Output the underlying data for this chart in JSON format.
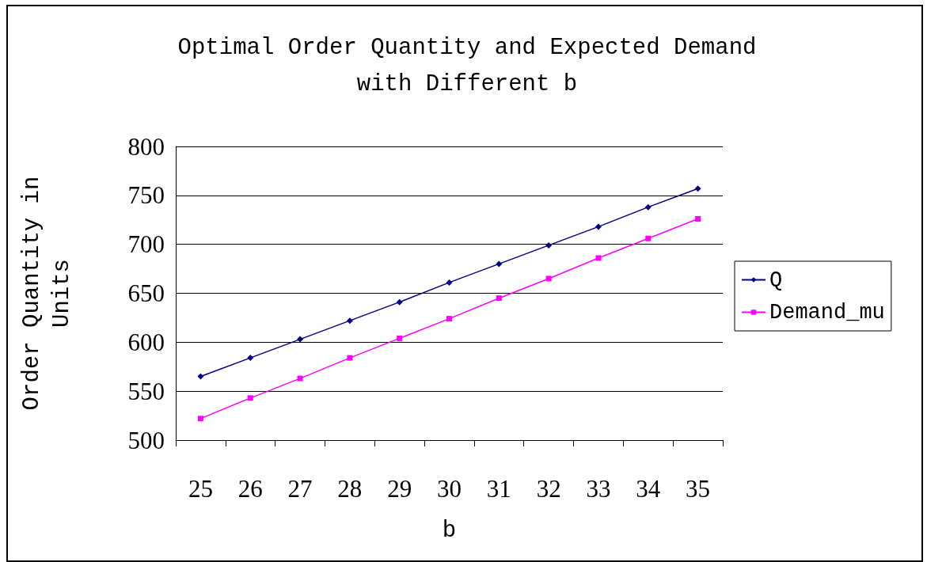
{
  "chart_data": {
    "type": "line",
    "title": "Optimal Order Quantity and Expected Demand\nwith Different b",
    "xlabel": "b",
    "ylabel": "Order Quantity in\nUnits",
    "categories": [
      "25",
      "26",
      "27",
      "28",
      "29",
      "30",
      "31",
      "32",
      "33",
      "34",
      "35"
    ],
    "series": [
      {
        "name": "Q",
        "color": "#000080",
        "marker": "diamond",
        "values": [
          565,
          584,
          603,
          622,
          641,
          661,
          680,
          699,
          718,
          738,
          757
        ]
      },
      {
        "name": "Demand_mu",
        "color": "#ff00ff",
        "marker": "square",
        "values": [
          522,
          543,
          563,
          584,
          604,
          624,
          645,
          665,
          686,
          706,
          726
        ]
      }
    ],
    "ylim": [
      500,
      800
    ],
    "yticks": [
      500,
      550,
      600,
      650,
      700,
      750,
      800
    ],
    "grid": "y",
    "legend": "right",
    "line_style": "solid"
  }
}
